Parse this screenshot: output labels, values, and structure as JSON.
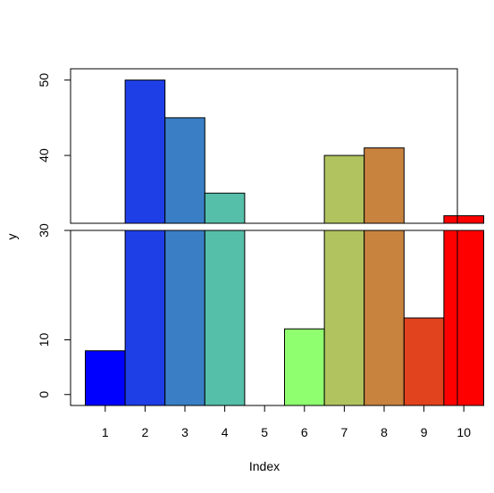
{
  "chart_data": {
    "type": "bar",
    "title": "",
    "xlabel": "Index",
    "ylabel": "y",
    "categories": [
      "1",
      "2",
      "3",
      "4",
      "5",
      "6",
      "7",
      "8",
      "9",
      "10"
    ],
    "values": [
      8,
      50,
      45,
      35,
      null,
      12,
      40,
      41,
      14,
      32
    ],
    "colors": [
      "#0000ff",
      "#1f3fe6",
      "#3a7fc6",
      "#55bfaa",
      "#72df8f",
      "#8fff6f",
      "#b0c35f",
      "#c8833f",
      "#e1431f",
      "#ff0000"
    ],
    "broken_axis": {
      "lower_range": [
        -2,
        30
      ],
      "upper_range": [
        31,
        51.5
      ],
      "lower_ticks": [
        "0",
        "10",
        "30"
      ],
      "upper_ticks": [
        "40",
        "50"
      ],
      "lower_tick_values": [
        0,
        10,
        30
      ],
      "upper_tick_values": [
        40,
        50
      ]
    },
    "grid": false,
    "legend": "none"
  }
}
